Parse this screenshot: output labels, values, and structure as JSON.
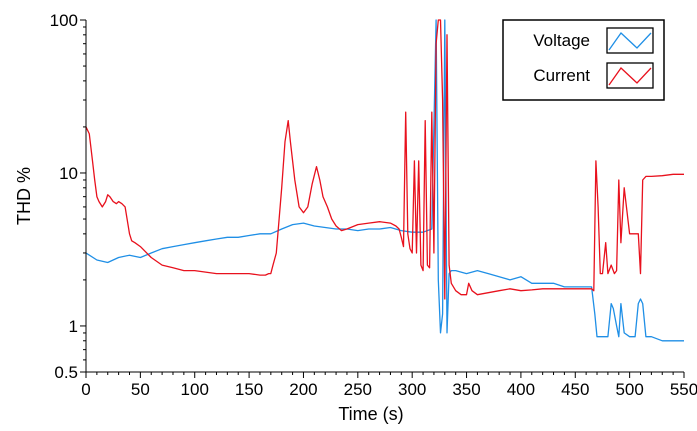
{
  "chart_data": {
    "type": "line",
    "title": "",
    "xlabel": "Time (s)",
    "ylabel": "THD %",
    "xlim": [
      0,
      550
    ],
    "ylim": [
      0.5,
      100
    ],
    "yscale": "log",
    "x_ticks": [
      0,
      50,
      100,
      150,
      200,
      250,
      300,
      350,
      400,
      450,
      500,
      550
    ],
    "x_tick_labels": [
      "0",
      "50",
      "100",
      "150",
      "200",
      "250",
      "300",
      "350",
      "400",
      "450",
      "500",
      "550"
    ],
    "y_ticks": [
      0.5,
      1,
      10,
      100
    ],
    "y_tick_labels": [
      "0.5",
      "1",
      "10",
      "100"
    ],
    "grid": false,
    "legend_position": "top-right",
    "series": [
      {
        "name": "Voltage",
        "color": "#1f8fe6",
        "x": [
          0,
          10,
          20,
          30,
          40,
          50,
          60,
          70,
          80,
          90,
          100,
          110,
          120,
          130,
          140,
          150,
          160,
          170,
          180,
          190,
          200,
          210,
          220,
          230,
          240,
          250,
          260,
          270,
          280,
          290,
          300,
          310,
          318,
          322,
          324,
          326,
          328,
          330,
          332,
          334,
          336,
          340,
          350,
          360,
          370,
          380,
          390,
          400,
          410,
          420,
          430,
          440,
          450,
          460,
          465,
          468,
          470,
          472,
          475,
          480,
          483,
          485,
          488,
          490,
          492,
          495,
          500,
          505,
          508,
          510,
          512,
          515,
          520,
          530,
          540,
          550
        ],
        "values": [
          3.0,
          2.7,
          2.6,
          2.8,
          2.9,
          2.8,
          3.0,
          3.2,
          3.3,
          3.4,
          3.5,
          3.6,
          3.7,
          3.8,
          3.8,
          3.9,
          4.0,
          4.0,
          4.3,
          4.6,
          4.7,
          4.5,
          4.4,
          4.3,
          4.3,
          4.2,
          4.3,
          4.3,
          4.4,
          4.2,
          4.1,
          4.1,
          4.3,
          120,
          2.0,
          0.9,
          1.2,
          120,
          0.9,
          2.2,
          2.3,
          2.3,
          2.2,
          2.3,
          2.2,
          2.1,
          2.0,
          2.1,
          1.9,
          1.9,
          1.9,
          1.8,
          1.8,
          1.8,
          1.8,
          1.2,
          0.85,
          0.85,
          0.85,
          0.85,
          1.4,
          1.3,
          1.0,
          0.85,
          1.4,
          0.9,
          0.85,
          0.85,
          1.4,
          1.5,
          1.4,
          0.85,
          0.85,
          0.8,
          0.8,
          0.8
        ]
      },
      {
        "name": "Current",
        "color": "#e8111d",
        "x": [
          0,
          3,
          6,
          8,
          10,
          12,
          15,
          18,
          20,
          22,
          25,
          28,
          30,
          33,
          36,
          40,
          42,
          45,
          50,
          60,
          70,
          80,
          90,
          100,
          110,
          120,
          130,
          140,
          150,
          160,
          165,
          168,
          170,
          172,
          175,
          180,
          183,
          186,
          188,
          192,
          196,
          200,
          204,
          208,
          212,
          215,
          218,
          222,
          226,
          230,
          235,
          240,
          250,
          260,
          270,
          280,
          285,
          288,
          290,
          292,
          294,
          296,
          298,
          300,
          302,
          304,
          306,
          308,
          310,
          312,
          314,
          316,
          318,
          320,
          322,
          324,
          326,
          328,
          330,
          332,
          334,
          336,
          340,
          345,
          350,
          352,
          355,
          360,
          370,
          380,
          390,
          400,
          410,
          420,
          430,
          440,
          450,
          460,
          465,
          467,
          469,
          471,
          473,
          475,
          478,
          480,
          483,
          486,
          488,
          490,
          492,
          495,
          500,
          505,
          508,
          510,
          512,
          515,
          520,
          530,
          540,
          550
        ],
        "values": [
          20,
          18,
          12,
          9,
          7,
          6.5,
          6,
          6.5,
          7.2,
          7.0,
          6.5,
          6.3,
          6.5,
          6.3,
          6.0,
          4.0,
          3.6,
          3.5,
          3.3,
          2.8,
          2.5,
          2.4,
          2.3,
          2.3,
          2.25,
          2.2,
          2.2,
          2.2,
          2.2,
          2.15,
          2.15,
          2.2,
          2.2,
          2.5,
          3.0,
          8,
          16,
          22,
          16,
          9,
          6,
          5.5,
          6,
          8.5,
          11,
          9,
          7,
          6,
          5,
          4.5,
          4.2,
          4.3,
          4.6,
          4.7,
          4.8,
          4.7,
          4.5,
          4.3,
          3.8,
          3.3,
          25,
          4,
          3.2,
          3.0,
          12,
          3.0,
          12,
          2.5,
          2.3,
          22,
          2.5,
          2.4,
          25,
          3,
          70,
          100,
          100,
          30,
          1.5,
          80,
          2.5,
          1.9,
          1.7,
          1.6,
          1.6,
          1.9,
          1.7,
          1.6,
          1.65,
          1.7,
          1.75,
          1.7,
          1.72,
          1.75,
          1.75,
          1.75,
          1.75,
          1.75,
          1.75,
          1.7,
          12,
          6,
          2.2,
          2.2,
          3.5,
          2.2,
          2.5,
          2.2,
          2.3,
          9,
          3.5,
          8,
          4,
          4,
          4,
          2.2,
          9,
          9.5,
          9.5,
          9.6,
          9.8,
          9.8
        ]
      }
    ]
  }
}
